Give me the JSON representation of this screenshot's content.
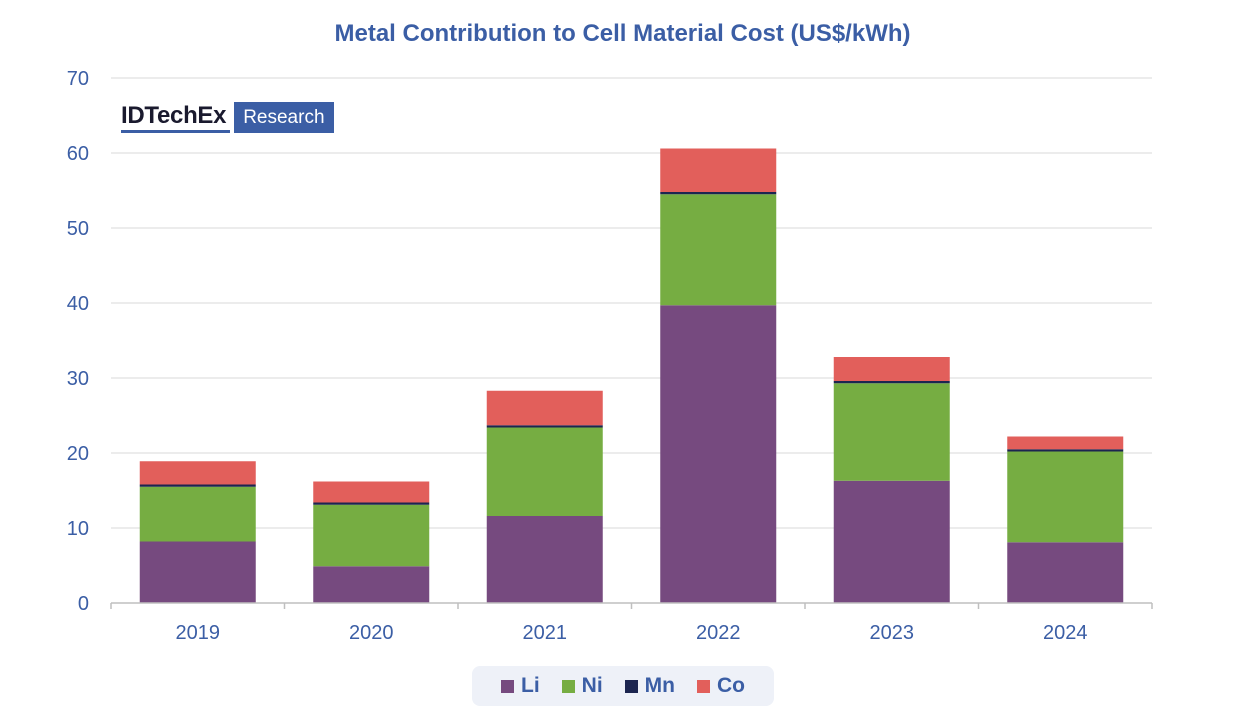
{
  "chart_data": {
    "type": "bar",
    "stacked": true,
    "title": "Metal Contribution to Cell Material Cost (US$/kWh)",
    "xlabel": "",
    "ylabel": "",
    "categories": [
      "2019",
      "2020",
      "2021",
      "2022",
      "2023",
      "2024"
    ],
    "series": [
      {
        "name": "Li",
        "color": "#764a7f",
        "values": [
          8.2,
          4.9,
          11.6,
          39.7,
          16.3,
          8.1
        ]
      },
      {
        "name": "Ni",
        "color": "#76ad42",
        "values": [
          7.3,
          8.2,
          11.8,
          14.8,
          13.0,
          12.1
        ]
      },
      {
        "name": "Mn",
        "color": "#1c2550",
        "values": [
          0.3,
          0.3,
          0.3,
          0.3,
          0.3,
          0.3
        ]
      },
      {
        "name": "Co",
        "color": "#e25f5b",
        "values": [
          3.1,
          2.8,
          4.6,
          5.8,
          3.2,
          1.7
        ]
      }
    ],
    "ylim": [
      0,
      70
    ],
    "yticks": [
      0,
      10,
      20,
      30,
      40,
      50,
      60,
      70
    ],
    "grid": true,
    "legend_position": "bottom-center"
  },
  "logo": {
    "brand": "IDTechEx",
    "badge": "Research"
  },
  "colors": {
    "title": "#3b5ea5",
    "axis_text": "#3b5ea5",
    "grid": "#d9d9d9"
  }
}
